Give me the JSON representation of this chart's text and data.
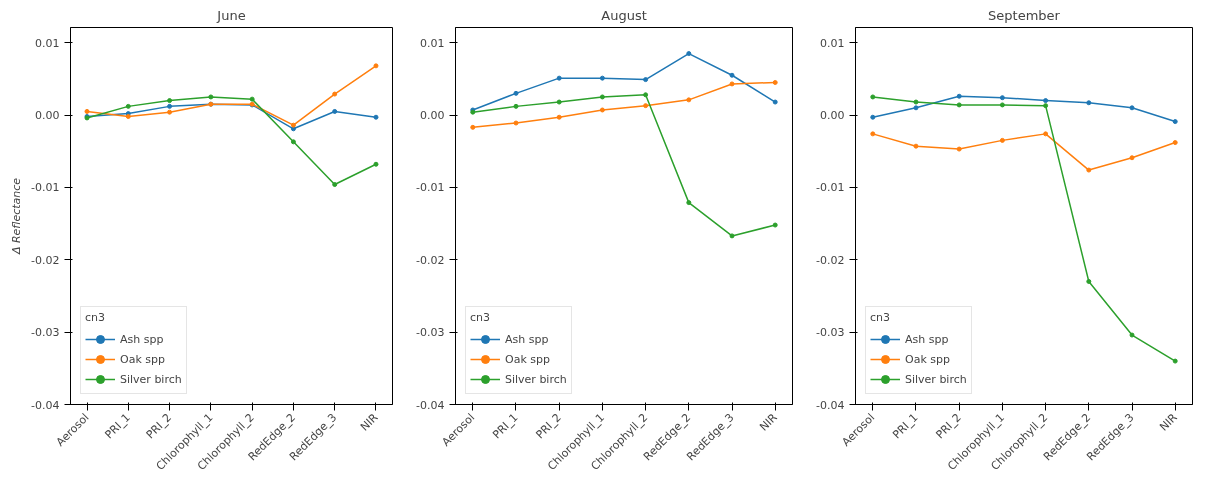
{
  "chart_data": [
    {
      "type": "line",
      "title": "June",
      "ylabel": "Δ Reflectance",
      "legend_title": "cn3",
      "legend": "bottom left",
      "marker": "circle",
      "grid": false,
      "categories": [
        "Aerosol",
        "PRI_1",
        "PRI_2",
        "Chlorophyll_1",
        "Chlorophyll_2",
        "RedEdge_2",
        "RedEdge_3",
        "NIR"
      ],
      "ylim": [
        -0.04,
        0.0121
      ],
      "yticks": [
        {
          "value": -0.04,
          "label": "-0.04"
        },
        {
          "value": -0.03,
          "label": "-0.03"
        },
        {
          "value": -0.02,
          "label": "-0.02"
        },
        {
          "value": -0.01,
          "label": "-0.01"
        },
        {
          "value": 0,
          "label": "0.00"
        },
        {
          "value": 0.01,
          "label": "0.01"
        }
      ],
      "series": [
        {
          "name": "Ash spp",
          "color": "#1f77b4",
          "values": [
            -0.0002,
            0.0002,
            0.0012,
            0.0015,
            0.0014,
            -0.0019,
            0.0005,
            -0.0003
          ]
        },
        {
          "name": "Oak spp",
          "color": "#ff7f0e",
          "values": [
            0.0005,
            -0.0002,
            0.0004,
            0.0015,
            0.0015,
            -0.0014,
            0.0029,
            0.0068
          ]
        },
        {
          "name": "Silver birch",
          "color": "#2ca02c",
          "values": [
            -0.0004,
            0.0012,
            0.002,
            0.0025,
            0.0022,
            -0.0037,
            -0.0096,
            -0.0068
          ]
        }
      ]
    },
    {
      "type": "line",
      "title": "August",
      "legend_title": "cn3",
      "legend": "bottom left",
      "marker": "circle",
      "grid": false,
      "categories": [
        "Aerosol",
        "PRI_1",
        "PRI_2",
        "Chlorophyll_1",
        "Chlorophyll_2",
        "RedEdge_2",
        "RedEdge_3",
        "NIR"
      ],
      "ylim": [
        -0.04,
        0.0121
      ],
      "yticks": [
        {
          "value": -0.04,
          "label": "-0.04"
        },
        {
          "value": -0.03,
          "label": "-0.03"
        },
        {
          "value": -0.02,
          "label": "-0.02"
        },
        {
          "value": -0.01,
          "label": "-0.01"
        },
        {
          "value": 0,
          "label": "0.00"
        },
        {
          "value": 0.01,
          "label": "0.01"
        }
      ],
      "series": [
        {
          "name": "Ash spp",
          "color": "#1f77b4",
          "values": [
            0.0007,
            0.003,
            0.0051,
            0.0051,
            0.0049,
            0.0085,
            0.0055,
            0.0018
          ]
        },
        {
          "name": "Oak spp",
          "color": "#ff7f0e",
          "values": [
            -0.0017,
            -0.0011,
            -0.0003,
            0.0007,
            0.0013,
            0.0021,
            0.0043,
            0.0045
          ]
        },
        {
          "name": "Silver birch",
          "color": "#2ca02c",
          "values": [
            0.0004,
            0.0012,
            0.0018,
            0.0025,
            0.0028,
            -0.0121,
            -0.0167,
            -0.0152
          ]
        }
      ]
    },
    {
      "type": "line",
      "title": "September",
      "legend_title": "cn3",
      "legend": "bottom left",
      "marker": "circle",
      "grid": false,
      "categories": [
        "Aerosol",
        "PRI_1",
        "PRI_2",
        "Chlorophyll_1",
        "Chlorophyll_2",
        "RedEdge_2",
        "RedEdge_3",
        "NIR"
      ],
      "ylim": [
        -0.04,
        0.0121
      ],
      "yticks": [
        {
          "value": -0.04,
          "label": "-0.04"
        },
        {
          "value": -0.03,
          "label": "-0.03"
        },
        {
          "value": -0.02,
          "label": "-0.02"
        },
        {
          "value": -0.01,
          "label": "-0.01"
        },
        {
          "value": 0,
          "label": "0.00"
        },
        {
          "value": 0.01,
          "label": "0.01"
        }
      ],
      "series": [
        {
          "name": "Ash spp",
          "color": "#1f77b4",
          "values": [
            -0.0003,
            0.001,
            0.0026,
            0.0024,
            0.002,
            0.0017,
            0.001,
            -0.0009
          ]
        },
        {
          "name": "Oak spp",
          "color": "#ff7f0e",
          "values": [
            -0.0026,
            -0.0043,
            -0.0047,
            -0.0035,
            -0.0026,
            -0.0076,
            -0.0059,
            -0.0038
          ]
        },
        {
          "name": "Silver birch",
          "color": "#2ca02c",
          "values": [
            0.0025,
            0.0018,
            0.0014,
            0.0014,
            0.0013,
            -0.023,
            -0.0304,
            -0.034
          ]
        }
      ]
    }
  ]
}
